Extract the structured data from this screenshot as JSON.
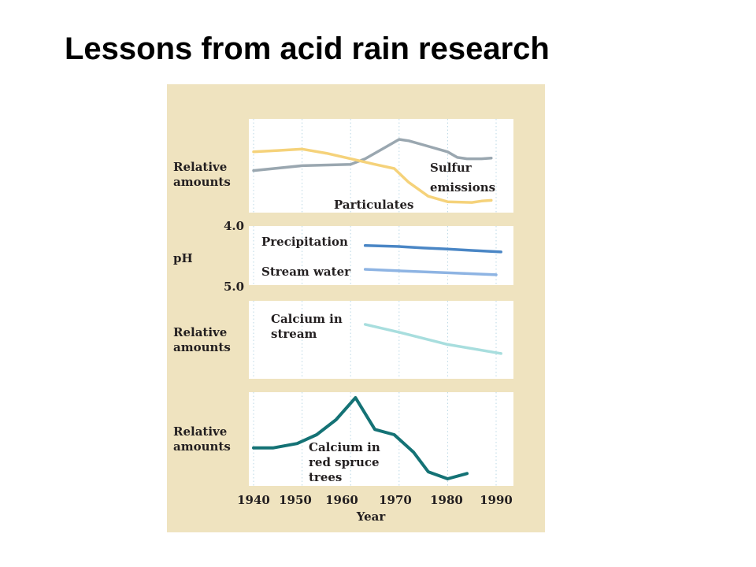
{
  "slide": {
    "title": "Lessons from acid rain research"
  },
  "chart_data": [
    {
      "type": "line",
      "ylabel": "Relative amounts",
      "series": [
        {
          "name": "Sulfur emissions",
          "color": "#9aa7b0",
          "x": [
            1940,
            1950,
            1960,
            1963,
            1967,
            1970,
            1972,
            1975,
            1980,
            1982,
            1984,
            1987,
            1989
          ],
          "y": [
            0.55,
            0.62,
            0.64,
            0.72,
            0.88,
            1.0,
            0.98,
            0.92,
            0.82,
            0.74,
            0.72,
            0.72,
            0.73
          ]
        },
        {
          "name": "Particulates",
          "color": "#f5d27a",
          "x": [
            1940,
            1945,
            1950,
            1955,
            1960,
            1965,
            1969,
            1972,
            1976,
            1980,
            1985,
            1987,
            1989
          ],
          "y": [
            0.82,
            0.84,
            0.86,
            0.8,
            0.72,
            0.64,
            0.58,
            0.38,
            0.18,
            0.1,
            0.09,
            0.11,
            0.12
          ]
        }
      ]
    },
    {
      "type": "line",
      "ylabel": "pH",
      "yticks": [
        "4.0",
        "5.0"
      ],
      "ylim": [
        5.0,
        4.0
      ],
      "series": [
        {
          "name": "Precipitation",
          "color": "#4a86c5",
          "x": [
            1963,
            1970,
            1975,
            1980,
            1985,
            1991
          ],
          "y": [
            4.25,
            4.27,
            4.3,
            4.32,
            4.35,
            4.38
          ]
        },
        {
          "name": "Stream water",
          "color": "#8eb4e3",
          "x": [
            1963,
            1970,
            1980,
            1990
          ],
          "y": [
            4.73,
            4.76,
            4.8,
            4.84
          ]
        }
      ]
    },
    {
      "type": "line",
      "ylabel": "Relative amounts",
      "series": [
        {
          "name": "Calcium in stream",
          "color": "#a8dede",
          "x": [
            1963,
            1970,
            1980,
            1991
          ],
          "y": [
            0.78,
            0.65,
            0.45,
            0.3
          ]
        }
      ]
    },
    {
      "type": "line",
      "ylabel": "Relative amounts",
      "xlabel": "Year",
      "x_ticks": [
        1940,
        1950,
        1960,
        1970,
        1980,
        1990
      ],
      "series": [
        {
          "name": "Calcium in red spruce trees",
          "color": "#147275",
          "x": [
            1940,
            1944,
            1949,
            1953,
            1957,
            1961,
            1965,
            1969,
            1973,
            1976,
            1980,
            1984
          ],
          "y": [
            0.43,
            0.43,
            0.48,
            0.58,
            0.75,
            1.0,
            0.64,
            0.58,
            0.38,
            0.16,
            0.08,
            0.14
          ]
        }
      ]
    }
  ],
  "labels": {
    "panel1_ylabel_line1": "Relative",
    "panel1_ylabel_line2": "amounts",
    "sulfur_line1": "Sulfur",
    "sulfur_line2": "emissions",
    "particulates": "Particulates",
    "ph_label": "pH",
    "ph_top": "4.0",
    "ph_bottom": "5.0",
    "precipitation": "Precipitation",
    "stream_water": "Stream water",
    "panel3_ylabel_line1": "Relative",
    "panel3_ylabel_line2": "amounts",
    "calcium_stream_line1": "Calcium in",
    "calcium_stream_line2": "stream",
    "panel4_ylabel_line1": "Relative",
    "panel4_ylabel_line2": "amounts",
    "calcium_trees_line1": "Calcium in",
    "calcium_trees_line2": "red spruce",
    "calcium_trees_line3": "trees",
    "year_ticks": [
      "1940",
      "1950",
      "1960",
      "1970",
      "1980",
      "1990"
    ],
    "xlabel": "Year"
  }
}
